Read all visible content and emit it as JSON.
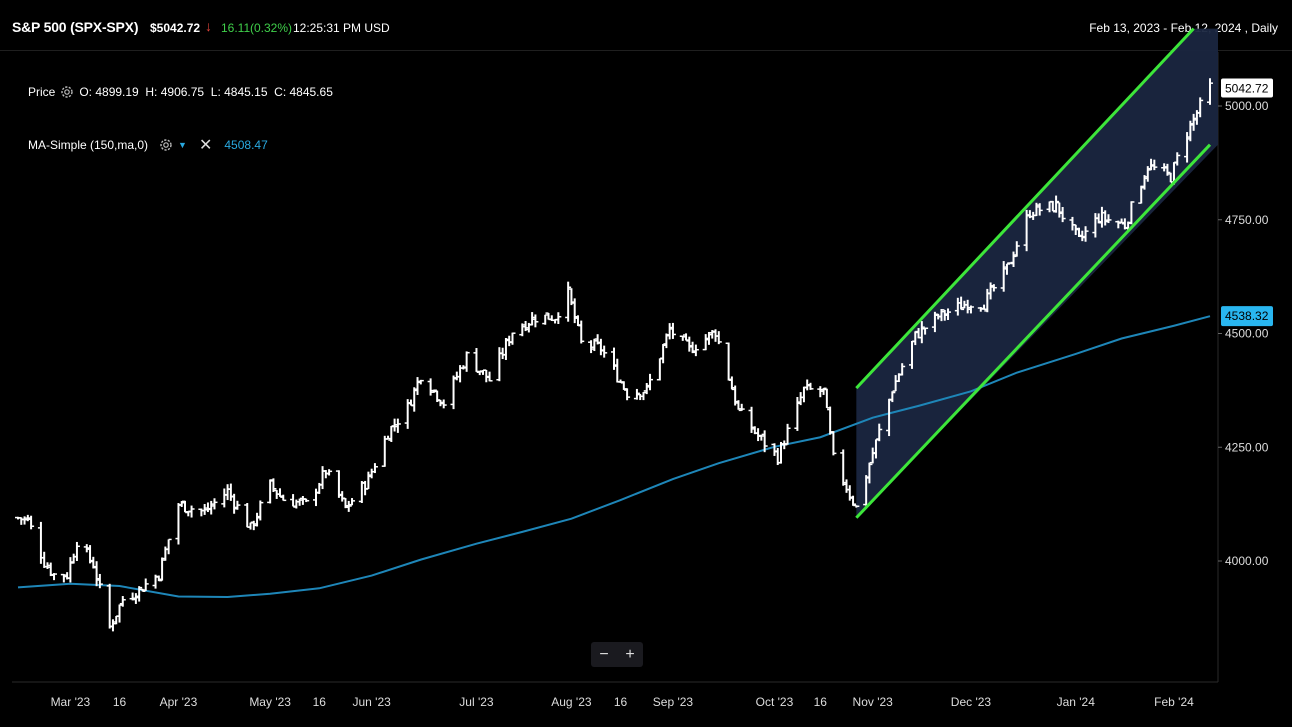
{
  "header": {
    "ticker": "S&P 500 (SPX-SPX)",
    "price": "$5042.72",
    "change": "16.11",
    "change_pct": "(0.32%)",
    "time": "12:25:31 PM USD",
    "date_range": "Feb 13, 2023 - Feb 12, 2024 , Daily"
  },
  "legend": {
    "price_label": "Price",
    "ohlc": "O: 4899.19  H: 4906.75  L: 4845.15  C: 4845.65",
    "ma_label": "MA-Simple (150,ma,0)",
    "ma_value": "4508.47"
  },
  "zoom": {
    "minus": "−",
    "plus": "+"
  },
  "colors": {
    "bars": "#ffffff",
    "ma": "#1e86b8",
    "channel": "#3de63a",
    "channel_fill": "#1a2640",
    "up_green": "#3fcf4a",
    "down_red": "#e0443a"
  },
  "chart_data": {
    "type": "line",
    "ylim": [
      3800,
      5150
    ],
    "y_ticks": [
      4000,
      4250,
      4500,
      4750,
      5000
    ],
    "y_tick_labels": [
      "4000.00",
      "4250.00",
      "4500.00",
      "4750.00",
      "5000.00"
    ],
    "x_tick_labels": [
      {
        "label": "Mar '23",
        "date": "2023-03-01"
      },
      {
        "label": "16",
        "date": "2023-03-16"
      },
      {
        "label": "Apr '23",
        "date": "2023-04-03"
      },
      {
        "label": "May '23",
        "date": "2023-05-01"
      },
      {
        "label": "16",
        "date": "2023-05-16"
      },
      {
        "label": "Jun '23",
        "date": "2023-06-01"
      },
      {
        "label": "Jul '23",
        "date": "2023-07-03"
      },
      {
        "label": "Aug '23",
        "date": "2023-08-01"
      },
      {
        "label": "16",
        "date": "2023-08-16"
      },
      {
        "label": "Sep '23",
        "date": "2023-09-01"
      },
      {
        "label": "Oct '23",
        "date": "2023-10-02"
      },
      {
        "label": "16",
        "date": "2023-10-16"
      },
      {
        "label": "Nov '23",
        "date": "2023-11-01"
      },
      {
        "label": "Dec '23",
        "date": "2023-12-01"
      },
      {
        "label": "Jan '24",
        "date": "2024-01-02"
      },
      {
        "label": "Feb '24",
        "date": "2024-02-01"
      }
    ],
    "price_labels": [
      {
        "value": 5042.72,
        "text": "5042.72"
      },
      {
        "value": 4538.32,
        "text": "4538.32"
      }
    ],
    "series": [
      {
        "type": "ohlc",
        "points": [
          [
            "2023-02-13",
            4095
          ],
          [
            "2023-02-16",
            4090
          ],
          [
            "2023-02-21",
            3998
          ],
          [
            "2023-02-24",
            3970
          ],
          [
            "2023-02-28",
            3970
          ],
          [
            "2023-03-03",
            4045
          ],
          [
            "2023-03-08",
            3992
          ],
          [
            "2023-03-13",
            3855
          ],
          [
            "2023-03-17",
            3916
          ],
          [
            "2023-03-22",
            3937
          ],
          [
            "2023-03-28",
            3972
          ],
          [
            "2023-04-03",
            4124
          ],
          [
            "2023-04-11",
            4108
          ],
          [
            "2023-04-18",
            4154
          ],
          [
            "2023-04-25",
            4071
          ],
          [
            "2023-05-01",
            4167
          ],
          [
            "2023-05-05",
            4136
          ],
          [
            "2023-05-12",
            4124
          ],
          [
            "2023-05-18",
            4198
          ],
          [
            "2023-05-24",
            4115
          ],
          [
            "2023-05-31",
            4180
          ],
          [
            "2023-06-06",
            4283
          ],
          [
            "2023-06-12",
            4338
          ],
          [
            "2023-06-16",
            4410
          ],
          [
            "2023-06-23",
            4348
          ],
          [
            "2023-06-30",
            4450
          ],
          [
            "2023-07-07",
            4398
          ],
          [
            "2023-07-14",
            4505
          ],
          [
            "2023-07-21",
            4536
          ],
          [
            "2023-07-27",
            4537
          ],
          [
            "2023-07-31",
            4589
          ],
          [
            "2023-08-04",
            4478
          ],
          [
            "2023-08-10",
            4468
          ],
          [
            "2023-08-18",
            4370
          ],
          [
            "2023-08-24",
            4376
          ],
          [
            "2023-08-31",
            4508
          ],
          [
            "2023-09-06",
            4465
          ],
          [
            "2023-09-14",
            4505
          ],
          [
            "2023-09-21",
            4330
          ],
          [
            "2023-09-27",
            4274
          ],
          [
            "2023-10-03",
            4229
          ],
          [
            "2023-10-11",
            4376
          ],
          [
            "2023-10-17",
            4373
          ],
          [
            "2023-10-20",
            4224
          ],
          [
            "2023-10-27",
            4117
          ],
          [
            "2023-11-01",
            4237
          ],
          [
            "2023-11-07",
            4378
          ],
          [
            "2023-11-14",
            4495
          ],
          [
            "2023-11-21",
            4538
          ],
          [
            "2023-11-30",
            4567
          ],
          [
            "2023-12-05",
            4567
          ],
          [
            "2023-12-12",
            4643
          ],
          [
            "2023-12-19",
            4768
          ],
          [
            "2023-12-27",
            4781
          ],
          [
            "2024-01-03",
            4704
          ],
          [
            "2024-01-09",
            4756
          ],
          [
            "2024-01-17",
            4739
          ],
          [
            "2024-01-24",
            4868
          ],
          [
            "2024-01-31",
            4845
          ],
          [
            "2024-02-05",
            4942
          ],
          [
            "2024-02-12",
            5042
          ]
        ]
      },
      {
        "name": "MA-Simple (150,ma,0)",
        "type": "line",
        "points": [
          [
            "2023-02-13",
            3942
          ],
          [
            "2023-03-01",
            3950
          ],
          [
            "2023-03-16",
            3945
          ],
          [
            "2023-04-03",
            3922
          ],
          [
            "2023-04-18",
            3921
          ],
          [
            "2023-05-01",
            3928
          ],
          [
            "2023-05-16",
            3940
          ],
          [
            "2023-06-01",
            3968
          ],
          [
            "2023-06-16",
            4003
          ],
          [
            "2023-07-03",
            4038
          ],
          [
            "2023-07-17",
            4064
          ],
          [
            "2023-08-01",
            4093
          ],
          [
            "2023-08-16",
            4134
          ],
          [
            "2023-09-01",
            4180
          ],
          [
            "2023-09-15",
            4215
          ],
          [
            "2023-10-02",
            4251
          ],
          [
            "2023-10-16",
            4272
          ],
          [
            "2023-11-01",
            4315
          ],
          [
            "2023-11-15",
            4341
          ],
          [
            "2023-12-01",
            4373
          ],
          [
            "2023-12-15",
            4414
          ],
          [
            "2024-01-02",
            4455
          ],
          [
            "2024-01-16",
            4489
          ],
          [
            "2024-02-01",
            4517
          ],
          [
            "2024-02-12",
            4538
          ]
        ]
      }
    ],
    "channel": {
      "upper": [
        [
          "2023-10-27",
          4380
        ],
        [
          "2024-02-07",
          5170
        ]
      ],
      "lower": [
        [
          "2023-10-27",
          4095
        ],
        [
          "2024-02-12",
          4915
        ]
      ]
    }
  }
}
